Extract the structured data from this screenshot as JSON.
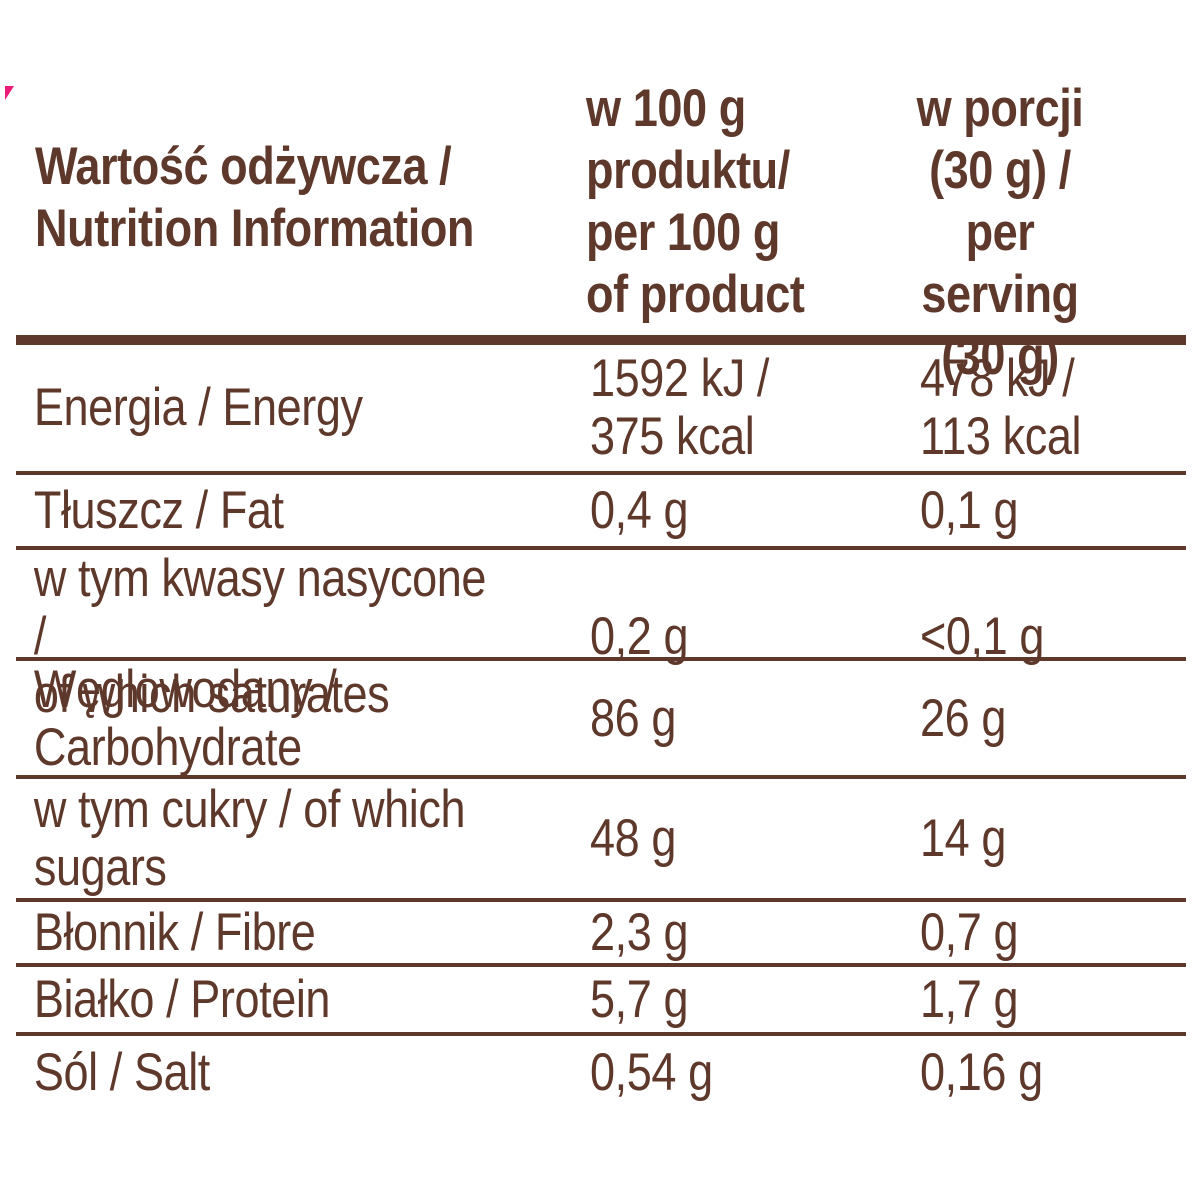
{
  "colors": {
    "text_brown": "#5e382b",
    "rule_brown": "#5e382b",
    "corner_mark_pink": "#ec1a78"
  },
  "corner_mark": "pink-triangle",
  "table": {
    "header": {
      "nutrition": "Wartość odżywcza /\nNutrition Information",
      "per_100g": "w 100 g\nproduktu/\nper 100 g\nof product",
      "per_serving": "w porcji\n(30 g) /\nper serving\n(30 g)"
    },
    "rows": [
      {
        "label": "Energia / Energy",
        "per_100g": "1592 kJ /\n375 kcal",
        "per_serving": "478 kJ /\n113 kcal"
      },
      {
        "label": "Tłuszcz / Fat",
        "per_100g": "0,4 g",
        "per_serving": "0,1 g"
      },
      {
        "label": "w tym kwasy nasycone /\nof which saturates",
        "per_100g": "0,2 g",
        "per_serving": "<0,1 g"
      },
      {
        "label": "Węglowodany /\nCarbohydrate",
        "per_100g": "86 g",
        "per_serving": "26 g"
      },
      {
        "label": "w tym cukry / of which\nsugars",
        "per_100g": "48 g",
        "per_serving": "14 g"
      },
      {
        "label": "Błonnik / Fibre",
        "per_100g": "2,3 g",
        "per_serving": "0,7 g"
      },
      {
        "label": "Białko / Protein",
        "per_100g": "5,7 g",
        "per_serving": "1,7 g"
      },
      {
        "label": "Sól / Salt",
        "per_100g": "0,54 g",
        "per_serving": "0,16 g"
      }
    ]
  }
}
